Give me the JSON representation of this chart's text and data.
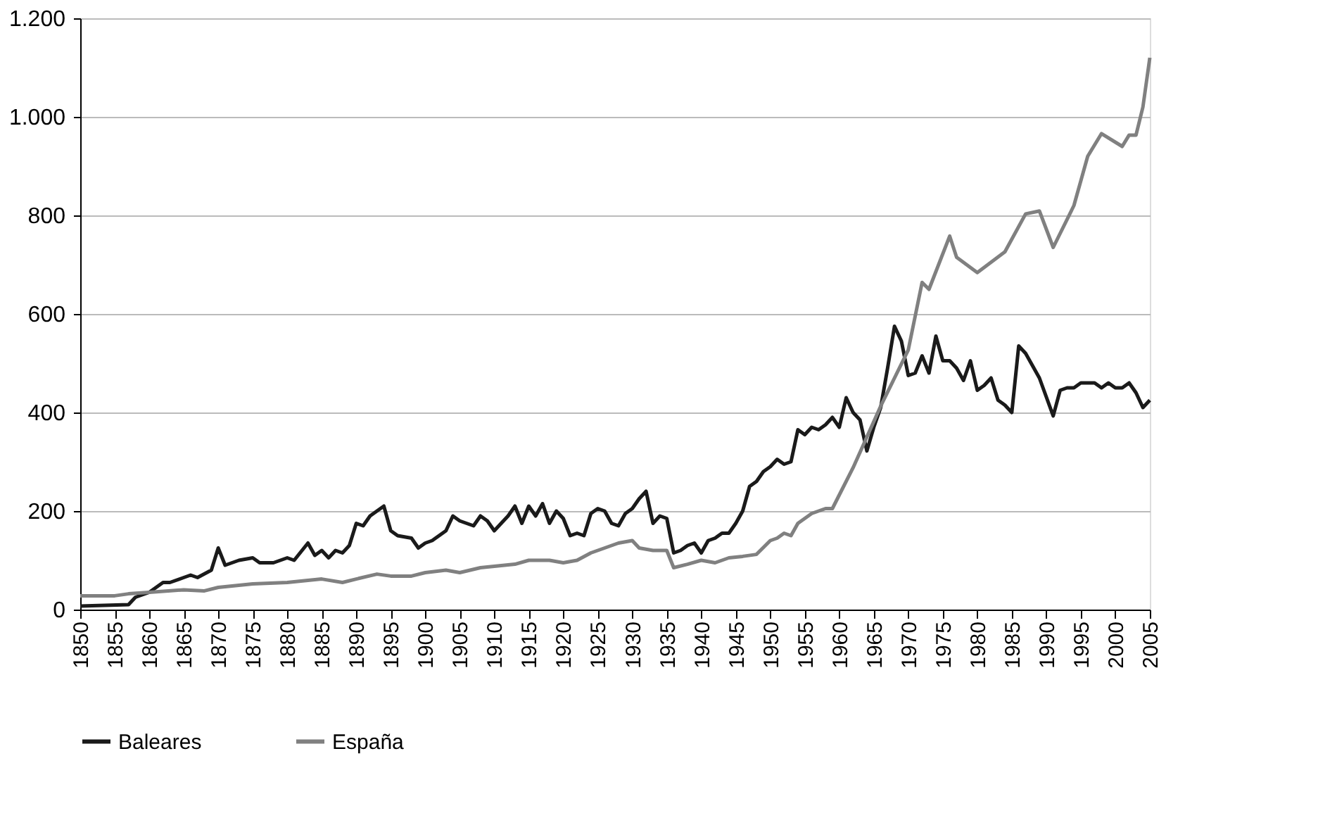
{
  "chart_data": {
    "type": "line",
    "xlim": [
      1850,
      2005
    ],
    "xticks": [
      1850,
      1855,
      1860,
      1865,
      1870,
      1875,
      1880,
      1885,
      1890,
      1895,
      1900,
      1905,
      1910,
      1915,
      1920,
      1925,
      1930,
      1935,
      1940,
      1945,
      1950,
      1955,
      1960,
      1965,
      1970,
      1975,
      1980,
      1985,
      1990,
      1995,
      2000,
      2005
    ],
    "ylim": [
      0,
      1200
    ],
    "yticks": [
      0,
      200,
      400,
      600,
      800,
      {
        "value": 1000,
        "label": "1.000"
      },
      {
        "value": 1200,
        "label": "1.200"
      }
    ],
    "grid": "y",
    "legend": "bottom",
    "marker": "none",
    "line_style": "solid",
    "series": [
      {
        "name": "Baleares",
        "color": "#1a1a1a",
        "x": [
          1850,
          1857,
          1858,
          1860,
          1862,
          1863,
          1865,
          1866,
          1867,
          1869,
          1870,
          1871,
          1873,
          1875,
          1876,
          1878,
          1880,
          1881,
          1883,
          1884,
          1885,
          1886,
          1887,
          1888,
          1889,
          1890,
          1891,
          1892,
          1893,
          1894,
          1895,
          1896,
          1898,
          1899,
          1900,
          1901,
          1903,
          1904,
          1905,
          1907,
          1908,
          1909,
          1910,
          1912,
          1913,
          1914,
          1915,
          1916,
          1917,
          1918,
          1919,
          1920,
          1921,
          1922,
          1923,
          1924,
          1925,
          1926,
          1927,
          1928,
          1929,
          1930,
          1931,
          1932,
          1933,
          1934,
          1935,
          1936,
          1937,
          1938,
          1939,
          1940,
          1941,
          1942,
          1943,
          1944,
          1945,
          1946,
          1947,
          1948,
          1949,
          1950,
          1951,
          1952,
          1953,
          1954,
          1955,
          1956,
          1957,
          1958,
          1959,
          1960,
          1961,
          1962,
          1963,
          1964,
          1965,
          1966,
          1967,
          1968,
          1969,
          1970,
          1971,
          1972,
          1973,
          1974,
          1975,
          1976,
          1977,
          1978,
          1979,
          1980,
          1981,
          1982,
          1983,
          1984,
          1985,
          1986,
          1987,
          1989,
          1991,
          1992,
          1993,
          1994,
          1995,
          1996,
          1997,
          1998,
          1999,
          2000,
          2001,
          2002,
          2003,
          2004,
          2005
        ],
        "values": [
          7,
          10,
          25,
          35,
          55,
          55,
          65,
          70,
          65,
          80,
          125,
          90,
          100,
          105,
          95,
          95,
          105,
          100,
          135,
          110,
          120,
          105,
          120,
          115,
          130,
          175,
          170,
          190,
          200,
          210,
          160,
          150,
          145,
          125,
          135,
          140,
          160,
          190,
          180,
          170,
          190,
          180,
          160,
          190,
          210,
          175,
          210,
          190,
          215,
          175,
          200,
          185,
          150,
          155,
          150,
          195,
          205,
          200,
          175,
          170,
          195,
          205,
          225,
          240,
          175,
          190,
          185,
          115,
          120,
          130,
          135,
          115,
          140,
          145,
          155,
          155,
          175,
          200,
          250,
          260,
          280,
          290,
          305,
          295,
          300,
          365,
          355,
          370,
          365,
          375,
          390,
          370,
          430,
          400,
          385,
          322,
          370,
          410,
          490,
          575,
          545,
          475,
          480,
          515,
          480,
          555,
          505,
          505,
          490,
          465,
          505,
          445,
          455,
          470,
          425,
          415,
          400,
          535,
          520,
          470,
          393,
          445,
          450,
          450,
          460,
          460,
          460,
          450,
          460,
          450,
          450,
          460,
          440,
          410,
          425
        ]
      },
      {
        "name": "España",
        "color": "#808080",
        "x": [
          1850,
          1855,
          1857,
          1860,
          1865,
          1868,
          1870,
          1875,
          1880,
          1885,
          1888,
          1890,
          1893,
          1895,
          1898,
          1900,
          1903,
          1905,
          1908,
          1910,
          1913,
          1915,
          1918,
          1920,
          1922,
          1924,
          1926,
          1928,
          1930,
          1931,
          1933,
          1935,
          1936,
          1938,
          1940,
          1942,
          1944,
          1946,
          1948,
          1950,
          1951,
          1952,
          1953,
          1954,
          1956,
          1958,
          1959,
          1962,
          1966,
          1970,
          1972,
          1973,
          1976,
          1977,
          1980,
          1984,
          1987,
          1989,
          1991,
          1994,
          1996,
          1998,
          2001,
          2002,
          2003,
          2004,
          2005
        ],
        "values": [
          28,
          28,
          32,
          35,
          40,
          38,
          45,
          52,
          55,
          62,
          55,
          62,
          72,
          68,
          68,
          75,
          80,
          75,
          85,
          88,
          92,
          100,
          100,
          95,
          100,
          115,
          125,
          135,
          140,
          125,
          120,
          120,
          85,
          92,
          100,
          95,
          105,
          108,
          112,
          140,
          145,
          155,
          150,
          175,
          195,
          205,
          205,
          288,
          413,
          527,
          664,
          650,
          758,
          715,
          684,
          726,
          803,
          809,
          735,
          820,
          920,
          966,
          940,
          963,
          963,
          1020,
          1120
        ]
      }
    ]
  }
}
